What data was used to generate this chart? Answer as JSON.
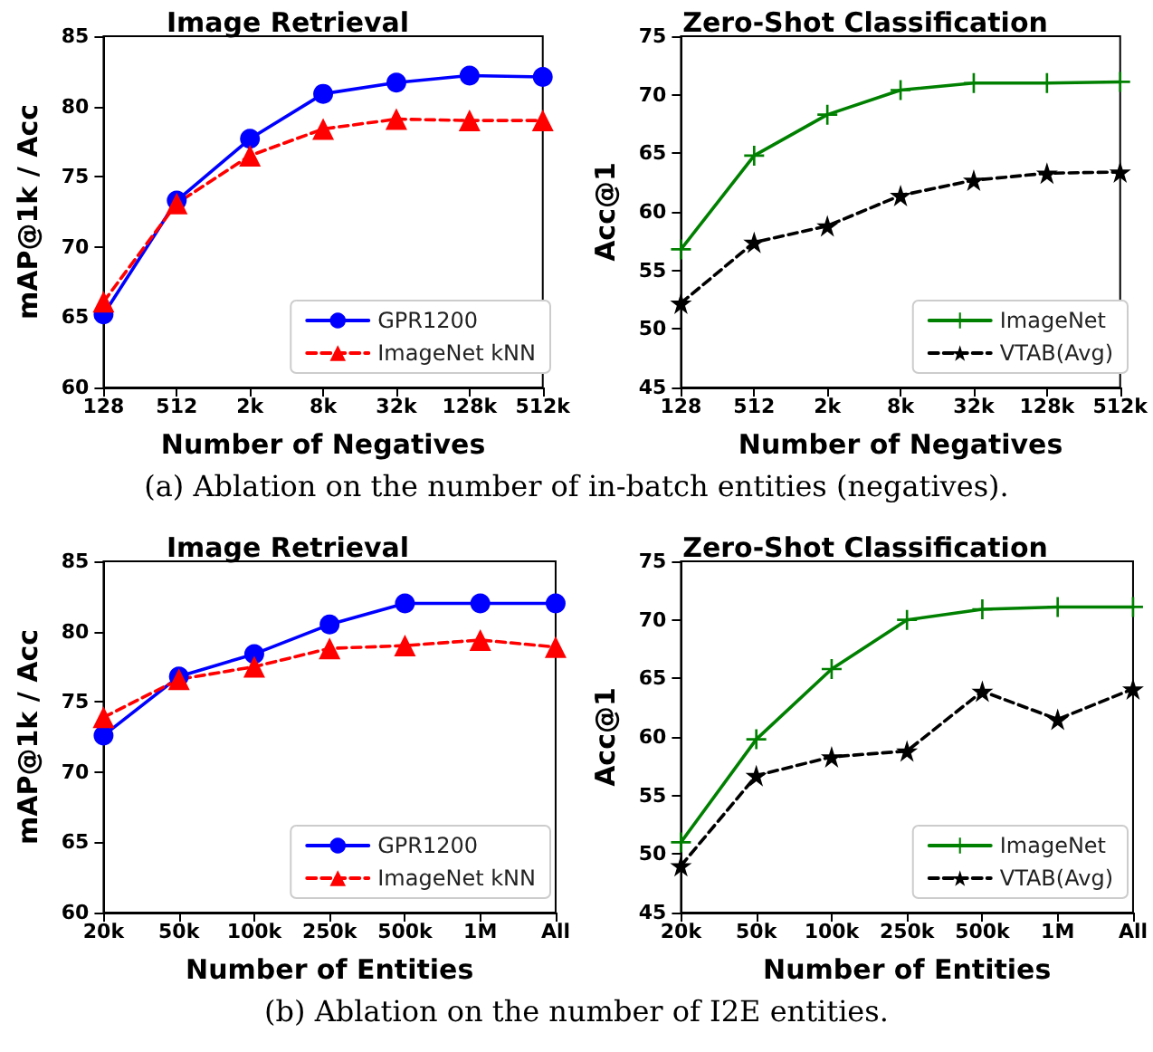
{
  "chart_data": [
    {
      "type": "line",
      "title": "Image Retrieval",
      "xlabel": "Number of Negatives",
      "ylabel": "mAP@1k / Acc",
      "categories": [
        "128",
        "512",
        "2k",
        "8k",
        "32k",
        "128k",
        "512k"
      ],
      "ylim": [
        60,
        85
      ],
      "yticks": [
        60,
        65,
        70,
        75,
        80,
        85
      ],
      "grid": false,
      "legend": "bottom right",
      "annotations": [
        "(a) Ablation on the number of in-batch entities (negatives)."
      ],
      "series": [
        {
          "name": "GPR1200",
          "color": "#0000ff",
          "marker": "circle",
          "line_style": "solid",
          "values": [
            65.2,
            73.3,
            77.7,
            80.9,
            81.7,
            82.2,
            82.1
          ]
        },
        {
          "name": "ImageNet kNN",
          "color": "#ff0000",
          "marker": "triangle",
          "line_style": "dashed",
          "values": [
            66.1,
            73.1,
            76.5,
            78.4,
            79.1,
            79.0,
            79.0
          ]
        }
      ]
    },
    {
      "type": "line",
      "title": "Zero-Shot Classification",
      "xlabel": "Number of Negatives",
      "ylabel": "Acc@1",
      "categories": [
        "128",
        "512",
        "2k",
        "8k",
        "32k",
        "128k",
        "512k"
      ],
      "ylim": [
        45,
        75
      ],
      "yticks": [
        45,
        50,
        55,
        60,
        65,
        70,
        75
      ],
      "grid": false,
      "legend": "bottom right",
      "series": [
        {
          "name": "ImageNet",
          "color": "#008000",
          "marker": "cross",
          "line_style": "solid",
          "values": [
            56.8,
            64.8,
            68.3,
            70.4,
            71.0,
            71.0,
            71.1
          ]
        },
        {
          "name": "VTAB(Avg)",
          "color": "#000000",
          "marker": "star",
          "line_style": "dashed",
          "values": [
            52.2,
            57.4,
            58.8,
            61.4,
            62.7,
            63.3,
            63.4
          ]
        }
      ]
    },
    {
      "type": "line",
      "title": "Image Retrieval",
      "xlabel": "Number of Entities",
      "ylabel": "mAP@1k / Acc",
      "categories": [
        "20k",
        "50k",
        "100k",
        "250k",
        "500k",
        "1M",
        "All"
      ],
      "ylim": [
        60,
        85
      ],
      "yticks": [
        60,
        65,
        70,
        75,
        80,
        85
      ],
      "grid": false,
      "legend": "bottom right",
      "annotations": [
        "(b) Ablation on the number of I2E entities."
      ],
      "series": [
        {
          "name": "GPR1200",
          "color": "#0000ff",
          "marker": "circle",
          "line_style": "solid",
          "values": [
            72.6,
            76.8,
            78.4,
            80.5,
            82.0,
            82.0,
            82.0
          ]
        },
        {
          "name": "ImageNet kNN",
          "color": "#ff0000",
          "marker": "triangle",
          "line_style": "dashed",
          "values": [
            73.9,
            76.6,
            77.5,
            78.8,
            79.0,
            79.4,
            78.9
          ]
        }
      ]
    },
    {
      "type": "line",
      "title": "Zero-Shot Classification",
      "xlabel": "Number of Entities",
      "ylabel": "Acc@1",
      "categories": [
        "20k",
        "50k",
        "100k",
        "250k",
        "500k",
        "1M",
        "All"
      ],
      "ylim": [
        45,
        75
      ],
      "yticks": [
        45,
        50,
        55,
        60,
        65,
        70,
        75
      ],
      "grid": false,
      "legend": "bottom right",
      "series": [
        {
          "name": "ImageNet",
          "color": "#008000",
          "marker": "cross",
          "line_style": "solid",
          "values": [
            51.0,
            59.8,
            65.8,
            70.0,
            70.9,
            71.1,
            71.1
          ]
        },
        {
          "name": "VTAB(Avg)",
          "color": "#000000",
          "marker": "star",
          "line_style": "dashed",
          "values": [
            49.0,
            56.7,
            58.3,
            58.8,
            63.9,
            61.5,
            64.1
          ]
        }
      ]
    }
  ]
}
